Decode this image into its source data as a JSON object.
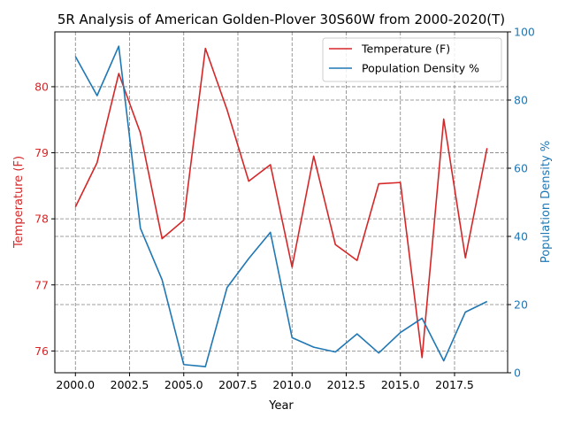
{
  "chart_data": {
    "type": "line",
    "title": "5R Analysis of American Golden-Plover 30S60W from 2000-2020(T)",
    "xlabel": "Year",
    "ylabel_left": "Temperature (F)",
    "ylabel_right": "Population Density %",
    "x": [
      2000,
      2001,
      2002,
      2003,
      2004,
      2005,
      2006,
      2007,
      2008,
      2009,
      2010,
      2011,
      2012,
      2013,
      2014,
      2015,
      2016,
      2017,
      2018,
      2019
    ],
    "xlim": [
      1999.05,
      2019.95
    ],
    "xticks": [
      "2000.0",
      "2002.5",
      "2005.0",
      "2007.5",
      "2010.0",
      "2012.5",
      "2015.0",
      "2017.5"
    ],
    "xtick_values": [
      2000,
      2002.5,
      2005,
      2007.5,
      2010,
      2012.5,
      2015,
      2017.5
    ],
    "ylim_left": [
      75.67,
      80.83
    ],
    "yticks_left": [
      "76",
      "77",
      "78",
      "79",
      "80"
    ],
    "ytick_values_left": [
      76,
      77,
      78,
      79,
      80
    ],
    "ylim_right": [
      0,
      100
    ],
    "yticks_right": [
      "0",
      "20",
      "40",
      "60",
      "80",
      "100"
    ],
    "ytick_values_right": [
      0,
      20,
      40,
      60,
      80,
      100
    ],
    "grid": true,
    "legend_position": "top-right",
    "left_color": "#d62728",
    "right_color": "#1f77b4",
    "series": [
      {
        "name": "Temperature (F)",
        "axis": "left",
        "color": "#d62728",
        "values": [
          78.18,
          78.85,
          80.2,
          79.3,
          77.7,
          77.98,
          80.58,
          79.65,
          78.57,
          78.82,
          77.27,
          78.95,
          77.61,
          77.37,
          78.53,
          78.55,
          75.9,
          79.51,
          77.41,
          79.07
        ]
      },
      {
        "name": "Population Density %",
        "axis": "right",
        "color": "#1f77b4",
        "values": [
          92.8,
          81.3,
          95.8,
          42.4,
          27.3,
          2.4,
          1.8,
          25.0,
          33.5,
          41.2,
          10.3,
          7.5,
          6.1,
          11.4,
          5.8,
          11.8,
          16.0,
          3.5,
          17.8,
          20.9
        ]
      }
    ]
  }
}
